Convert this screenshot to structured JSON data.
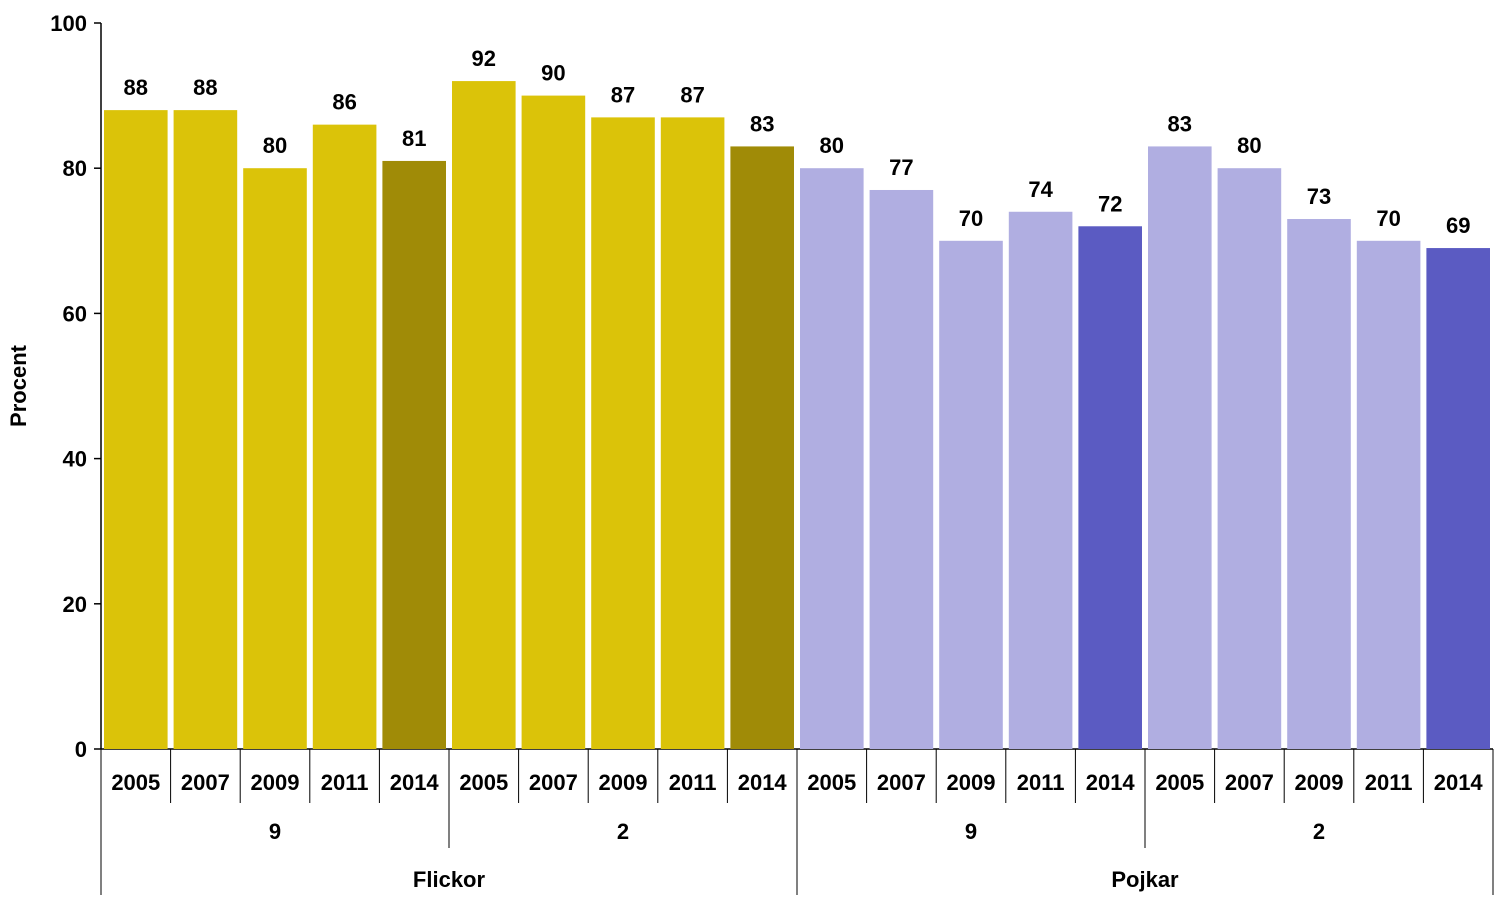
{
  "chart_data": {
    "type": "bar",
    "title": "",
    "ylabel": "Procent",
    "xlabel": "",
    "ylim": [
      0,
      100
    ],
    "yticks": [
      0,
      20,
      40,
      60,
      80,
      100
    ],
    "grid": false,
    "legend": "none",
    "groups": [
      {
        "label": "Flickor",
        "subgroups": [
          {
            "label": "9",
            "bars": [
              {
                "year": "2005",
                "value": 88,
                "color": "#dbc309"
              },
              {
                "year": "2007",
                "value": 88,
                "color": "#dbc309"
              },
              {
                "year": "2009",
                "value": 80,
                "color": "#dbc309"
              },
              {
                "year": "2011",
                "value": 86,
                "color": "#dbc309"
              },
              {
                "year": "2014",
                "value": 81,
                "color": "#a08b07"
              }
            ]
          },
          {
            "label": "2",
            "bars": [
              {
                "year": "2005",
                "value": 92,
                "color": "#dbc309"
              },
              {
                "year": "2007",
                "value": 90,
                "color": "#dbc309"
              },
              {
                "year": "2009",
                "value": 87,
                "color": "#dbc309"
              },
              {
                "year": "2011",
                "value": 87,
                "color": "#dbc309"
              },
              {
                "year": "2014",
                "value": 83,
                "color": "#a08b07"
              }
            ]
          }
        ]
      },
      {
        "label": "Pojkar",
        "subgroups": [
          {
            "label": "9",
            "bars": [
              {
                "year": "2005",
                "value": 80,
                "color": "#b0aee1"
              },
              {
                "year": "2007",
                "value": 77,
                "color": "#b0aee1"
              },
              {
                "year": "2009",
                "value": 70,
                "color": "#b0aee1"
              },
              {
                "year": "2011",
                "value": 74,
                "color": "#b0aee1"
              },
              {
                "year": "2014",
                "value": 72,
                "color": "#5b5bc2"
              }
            ]
          },
          {
            "label": "2",
            "bars": [
              {
                "year": "2005",
                "value": 83,
                "color": "#b0aee1"
              },
              {
                "year": "2007",
                "value": 80,
                "color": "#b0aee1"
              },
              {
                "year": "2009",
                "value": 73,
                "color": "#b0aee1"
              },
              {
                "year": "2011",
                "value": 70,
                "color": "#b0aee1"
              },
              {
                "year": "2014",
                "value": 69,
                "color": "#5b5bc2"
              }
            ]
          }
        ]
      }
    ]
  }
}
